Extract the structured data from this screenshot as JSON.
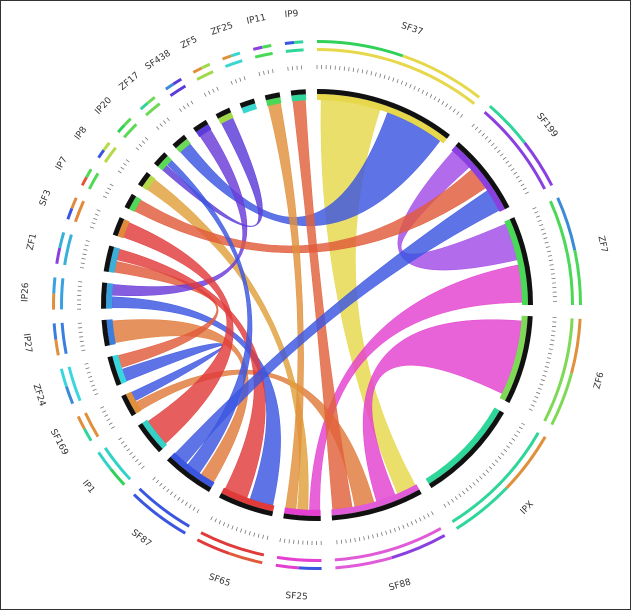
{
  "chart_data": {
    "type": "chord",
    "title": "",
    "nodes": [
      {
        "id": "SF37",
        "label": "SF37",
        "color": "#e6d84a"
      },
      {
        "id": "SF199",
        "label": "SF199",
        "color": "#8a3fe0"
      },
      {
        "id": "ZF7",
        "label": "ZF7",
        "color": "#49d957"
      },
      {
        "id": "ZF6",
        "label": "ZF6",
        "color": "#7ed957"
      },
      {
        "id": "IPX",
        "label": "IPX",
        "color": "#2fd69a"
      },
      {
        "id": "SF88",
        "label": "SF88",
        "color": "#e05bd8"
      },
      {
        "id": "SF25",
        "label": "SF25",
        "color": "#e33fd0"
      },
      {
        "id": "SF65",
        "label": "SF65",
        "color": "#e03a3a"
      },
      {
        "id": "SF87",
        "label": "SF87",
        "color": "#3a55e0"
      },
      {
        "id": "IP1",
        "label": "IP1",
        "color": "#34d2c6"
      },
      {
        "id": "SF169",
        "label": "SF169",
        "color": "#e0903a"
      },
      {
        "id": "ZF24",
        "label": "ZF24",
        "color": "#3ad6e0"
      },
      {
        "id": "IP27",
        "label": "IP27",
        "color": "#3a7ee0"
      },
      {
        "id": "IP26",
        "label": "IP26",
        "color": "#3aa0e0"
      },
      {
        "id": "ZF1",
        "label": "ZF1",
        "color": "#3ab0d8"
      },
      {
        "id": "SF3",
        "label": "SF3",
        "color": "#e08a3a"
      },
      {
        "id": "IP7",
        "label": "IP7",
        "color": "#4fd957"
      },
      {
        "id": "IP8",
        "label": "IP8",
        "color": "#b6d94a"
      },
      {
        "id": "IP20",
        "label": "IP20",
        "color": "#5ad957"
      },
      {
        "id": "ZF17",
        "label": "ZF17",
        "color": "#6ed957"
      },
      {
        "id": "SF438",
        "label": "SF438",
        "color": "#5a3ad8"
      },
      {
        "id": "ZF5",
        "label": "ZF5",
        "color": "#a0d94a"
      },
      {
        "id": "ZF25",
        "label": "ZF25",
        "color": "#3ad6d0"
      },
      {
        "id": "IP11",
        "label": "IP11",
        "color": "#49d957"
      },
      {
        "id": "IP9",
        "label": "IP9",
        "color": "#2fd69a"
      }
    ],
    "labels": [
      "SF37",
      "SF199",
      "ZF7",
      "ZF6",
      "IPX",
      "SF88",
      "SF25",
      "SF65",
      "SF87",
      "IP1",
      "SF169",
      "ZF24",
      "IP27",
      "IP26",
      "ZF1",
      "SF3",
      "IP7",
      "IP8",
      "IP20",
      "ZF17",
      "SF438",
      "ZF5",
      "ZF25",
      "IP11",
      "IP9"
    ],
    "groups": [
      {
        "name": "SF25",
        "color": "#30d158"
      },
      {
        "name": "SF37",
        "color": "#2fd69a"
      },
      {
        "name": "SF65",
        "color": "#3a8ad8"
      },
      {
        "name": "SF87",
        "color": "#e0903a"
      },
      {
        "name": "SF88",
        "color": "#e0903a"
      },
      {
        "name": "SF199",
        "color": "#8a3fe0"
      },
      {
        "name": "SF438",
        "color": "#3a55e0"
      },
      {
        "name": "SF3",
        "color": "#e05a3a"
      },
      {
        "name": "SF169",
        "color": "#3a55e0"
      }
    ],
    "ribbons": [
      {
        "source": "SF37",
        "target": "SF88",
        "color": "#e6d84a"
      },
      {
        "source": "SF199",
        "target": "ZF7",
        "color": "#a14ae6"
      },
      {
        "source": "SF88",
        "target": "ZF6",
        "color": "#e33fd0"
      },
      {
        "source": "SF25",
        "target": "ZF7",
        "color": "#e33fd0"
      },
      {
        "source": "IP27",
        "target": "SF87",
        "color": "#e07a3a"
      },
      {
        "source": "SF169",
        "target": "SF88",
        "color": "#e07a3a"
      },
      {
        "source": "IP26",
        "target": "SF65",
        "color": "#3a55e0"
      },
      {
        "source": "ZF24",
        "target": "SF169",
        "color": "#3a55e0"
      },
      {
        "source": "IP8",
        "target": "SF25",
        "color": "#e0a03a"
      },
      {
        "source": "ZF17",
        "target": "SF37",
        "color": "#3a55e0"
      },
      {
        "source": "ZF1",
        "target": "ZF24",
        "color": "#e05a3a"
      },
      {
        "source": "SF438",
        "target": "IP26",
        "color": "#6a3ad8"
      },
      {
        "source": "IP9",
        "target": "SF88",
        "color": "#e0603a"
      },
      {
        "source": "IP7",
        "target": "SF199",
        "color": "#e05a3a"
      },
      {
        "source": "ZF5",
        "target": "IP20",
        "color": "#5a3ad8"
      },
      {
        "source": "IP11",
        "target": "SF25",
        "color": "#e0903a"
      },
      {
        "source": "SF3",
        "target": "IP1",
        "color": "#e03a3a"
      },
      {
        "source": "SF65",
        "target": "ZF1",
        "color": "#e03a3a"
      },
      {
        "source": "IP20",
        "target": "SF87",
        "color": "#3a55e0"
      },
      {
        "source": "SF87",
        "target": "SF199",
        "color": "#3a55e0"
      }
    ]
  }
}
